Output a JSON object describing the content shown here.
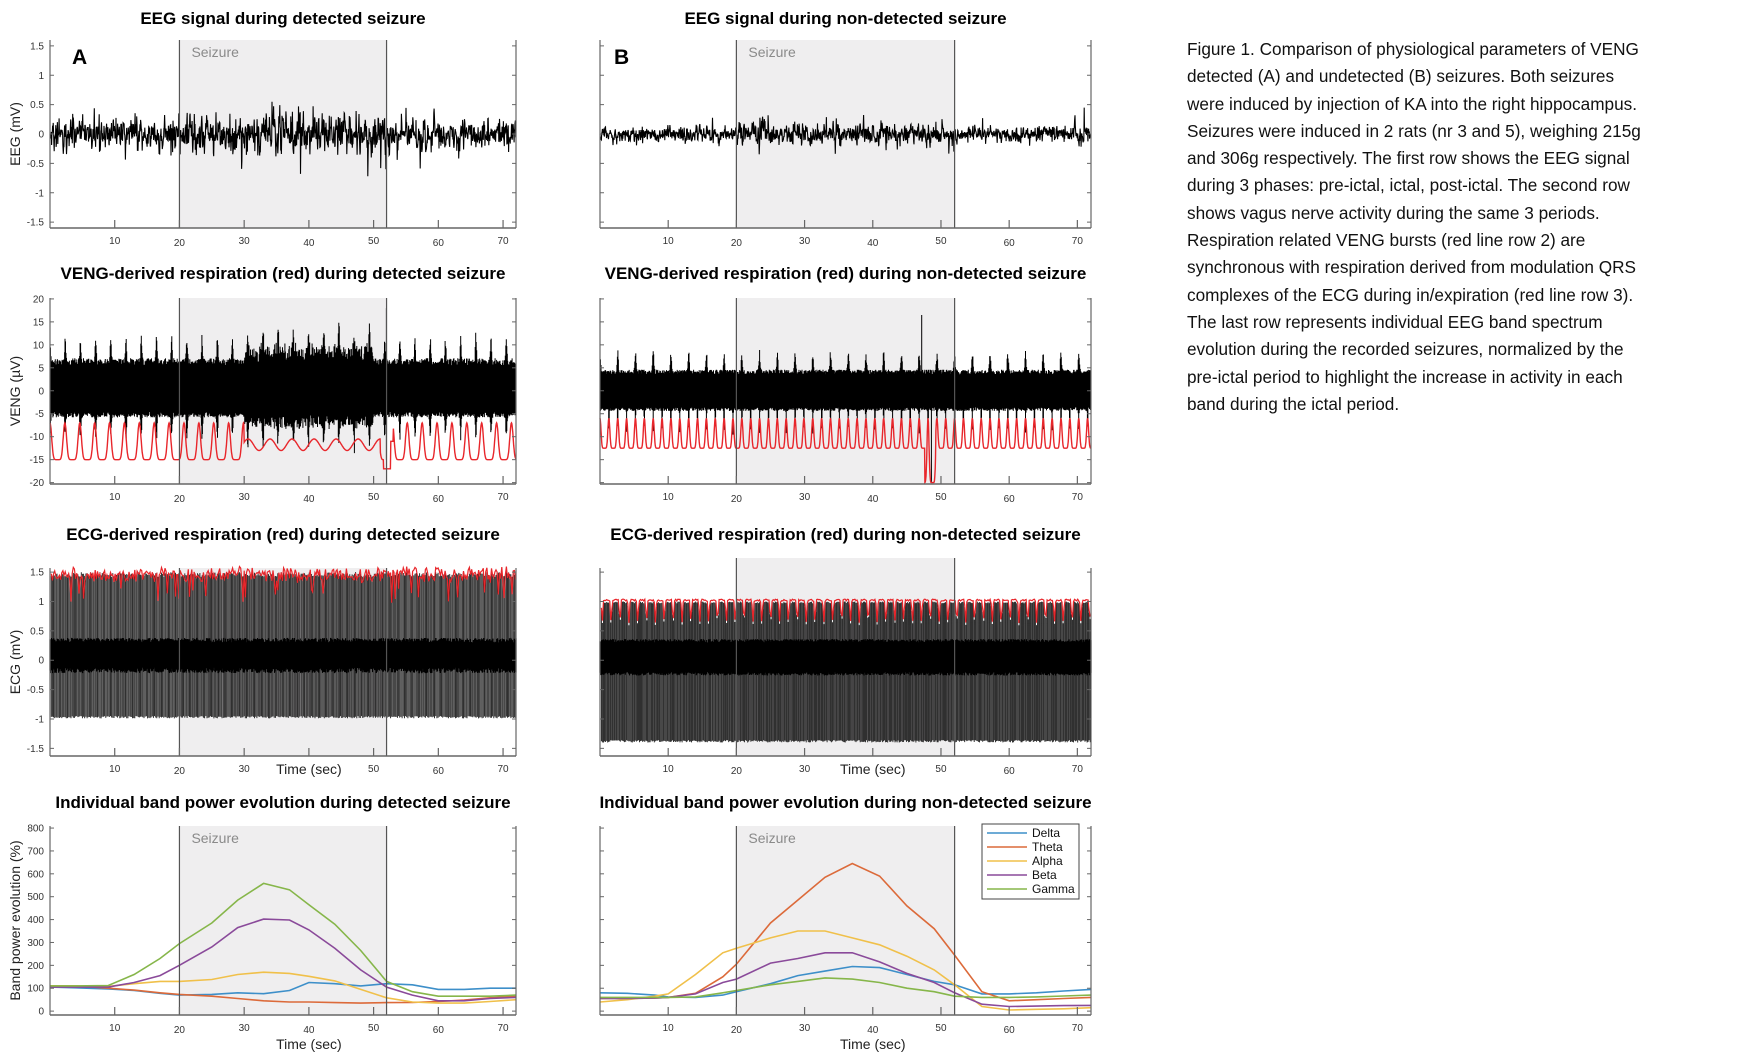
{
  "caption": {
    "lines": [
      "Figure 1. Comparison of physiological parameters of VENG",
      "detected (A) and undetected (B) seizures. Both seizures",
      "were induced by injection of KA into the right hippocampus.",
      "Seizures were induced in 2 rats (nr 3 and 5), weighing 215g",
      "and 306g respectively. The first row shows the EEG signal",
      "during 3 phases: pre-ictal, ictal, post-ictal. The second row",
      "shows vagus nerve activity during the same 3 periods.",
      "Respiration related VENG bursts (red line row 2) are",
      "synchronous with respiration derived from modulation QRS",
      "complexes of the ECG during in/expiration (red line row 3).",
      "The last row represents individual EEG band spectrum",
      "evolution during the recorded seizures, normalized by the",
      "pre-ictal period to highlight the increase in activity in each",
      "band during the ictal period."
    ]
  },
  "colors": {
    "seizure_fill": "#efeeef",
    "trace": "#000000",
    "respiration": "#e8262b",
    "Delta": "#3d8fc9",
    "Theta": "#dc6a3a",
    "Alpha": "#f0c04a",
    "Beta": "#8a4a9a",
    "Gamma": "#86b64a"
  },
  "chart_data": [
    {
      "type": "line",
      "kind": "eeg",
      "panel_letter": "A",
      "title": "EEG signal during detected seizure",
      "ylabel": "EEG (mV)",
      "xlabel": "",
      "xlim": [
        0,
        72
      ],
      "ylim": [
        -1.6,
        1.6
      ],
      "yticks": [
        1.5,
        1,
        0.5,
        0,
        -0.5,
        -1,
        -1.5
      ],
      "ytick_labels": [
        "1.5",
        "1",
        "0.5",
        "0",
        "-0.5",
        "-1",
        "-1.5"
      ],
      "xticks": [
        10,
        20,
        30,
        40,
        50,
        60,
        70
      ],
      "xtick_labels": [
        "10",
        "20",
        "30",
        "40",
        "50",
        "60",
        "70"
      ],
      "seizure_window": [
        20,
        52
      ],
      "annotation": "Seizure",
      "series": [
        {
          "name": "EEG",
          "approx_range": [
            -0.72,
            0.55
          ]
        }
      ]
    },
    {
      "type": "line",
      "kind": "eeg",
      "panel_letter": "B",
      "title": "EEG signal during non-detected seizure",
      "ylabel": "",
      "xlabel": "",
      "xlim": [
        0,
        72
      ],
      "ylim": [
        -1.6,
        1.6
      ],
      "yticks": [
        1.5,
        1,
        0.5,
        0,
        -0.5,
        -1,
        -1.5
      ],
      "ytick_labels": [],
      "xticks": [
        10,
        20,
        30,
        40,
        50,
        60,
        70
      ],
      "xtick_labels": [
        "10",
        "20",
        "30",
        "40",
        "50",
        "60",
        "70"
      ],
      "seizure_window": [
        20,
        52
      ],
      "annotation": "Seizure",
      "series": [
        {
          "name": "EEG",
          "approx_range": [
            -0.3,
            0.45
          ]
        }
      ]
    },
    {
      "type": "line",
      "kind": "veng",
      "title": "VENG-derived respiration (red) during detected seizure",
      "ylabel": "VENG (µV)",
      "xlabel": "",
      "xlim": [
        0,
        72
      ],
      "ylim": [
        -20.3,
        20.2
      ],
      "yticks": [
        20,
        15,
        10,
        5,
        0,
        -5,
        -10,
        -15,
        -20
      ],
      "ytick_labels": [
        "20",
        "15",
        "10",
        "5",
        "0",
        "-5",
        "-10",
        "-15",
        "-20"
      ],
      "xticks": [
        10,
        20,
        30,
        40,
        50,
        60,
        70
      ],
      "xtick_labels": [
        "10",
        "20",
        "30",
        "40",
        "50",
        "60",
        "70"
      ],
      "seizure_window": [
        20,
        52
      ],
      "annotation": "",
      "series": [
        {
          "name": "VENG",
          "approx_range": [
            -15,
            18
          ]
        },
        {
          "name": "Respiration",
          "color": "red",
          "approx_range": [
            -17,
            -6
          ]
        }
      ]
    },
    {
      "type": "line",
      "kind": "veng",
      "title": "VENG-derived respiration (red) during non-detected seizure",
      "ylabel": "",
      "xlabel": "",
      "xlim": [
        0,
        72
      ],
      "ylim": [
        -20.3,
        20.2
      ],
      "yticks": [
        20,
        15,
        10,
        5,
        0,
        -5,
        -10,
        -15,
        -20
      ],
      "ytick_labels": [],
      "xticks": [
        10,
        20,
        30,
        40,
        50,
        60,
        70
      ],
      "xtick_labels": [
        "10",
        "20",
        "30",
        "40",
        "50",
        "60",
        "70"
      ],
      "seizure_window": [
        20,
        52
      ],
      "annotation": "",
      "series": [
        {
          "name": "VENG",
          "approx_range": [
            -20,
            17
          ]
        },
        {
          "name": "Respiration",
          "color": "red",
          "approx_range": [
            -20,
            -6
          ]
        }
      ]
    },
    {
      "type": "line",
      "kind": "ecg",
      "title": "ECG-derived respiration (red) during detected seizure",
      "ylabel": "ECG (mV)",
      "xlabel": "Time (sec)",
      "xlim": [
        0,
        72
      ],
      "ylim": [
        -1.63,
        1.57
      ],
      "yticks": [
        1.5,
        1,
        0.5,
        0,
        -0.5,
        -1,
        -1.5
      ],
      "ytick_labels": [
        "1.5",
        "1",
        "0.5",
        "0",
        "-0.5",
        "-1",
        "-1.5"
      ],
      "xticks": [
        10,
        20,
        30,
        40,
        50,
        60,
        70
      ],
      "xtick_labels": [
        "10",
        "20",
        "30",
        "",
        "50",
        "60",
        "70"
      ],
      "seizure_window": [
        20,
        52
      ],
      "annotation": "",
      "series": [
        {
          "name": "ECG",
          "approx_range": [
            -1,
            1.5
          ]
        },
        {
          "name": "Respiration",
          "color": "red",
          "approx_range": [
            1,
            1.65
          ]
        }
      ]
    },
    {
      "type": "line",
      "kind": "ecg",
      "title": "ECG-derived respiration (red) during non-detected seizure",
      "ylabel": "",
      "xlabel": "Time (sec)",
      "xlim": [
        0,
        72
      ],
      "ylim": [
        -1.63,
        1.57
      ],
      "yticks": [
        1.5,
        1,
        0.5,
        0,
        -0.5,
        -1,
        -1.5
      ],
      "ytick_labels": [],
      "xticks": [
        10,
        20,
        30,
        40,
        50,
        60,
        70
      ],
      "xtick_labels": [
        "10",
        "20",
        "30",
        "",
        "50",
        "60",
        "70"
      ],
      "seizure_window": [
        20,
        52
      ],
      "annotation": "",
      "series": [
        {
          "name": "ECG",
          "approx_range": [
            -1.4,
            1
          ]
        },
        {
          "name": "Respiration",
          "color": "red",
          "approx_range": [
            0.6,
            1.05
          ]
        }
      ]
    },
    {
      "type": "line",
      "kind": "band",
      "title": "Individual band power evolution during detected seizure",
      "ylabel": "Band power evolution (%)",
      "xlabel": "Time (sec)",
      "xlim": [
        0,
        72
      ],
      "ylim": [
        -17,
        809
      ],
      "yticks": [
        800,
        700,
        600,
        500,
        400,
        300,
        200,
        100,
        0
      ],
      "ytick_labels": [
        "800",
        "700",
        "600",
        "500",
        "400",
        "300",
        "200",
        "100",
        "0"
      ],
      "xticks": [
        10,
        20,
        30,
        40,
        50,
        60,
        70
      ],
      "xtick_labels": [
        "10",
        "20",
        "30",
        "40",
        "50",
        "60",
        "70"
      ],
      "seizure_window": [
        20,
        52
      ],
      "annotation": "Seizure",
      "x": [
        0,
        4,
        9,
        13,
        17,
        20,
        25,
        29,
        33,
        37,
        40,
        44,
        48,
        52,
        56,
        60,
        64,
        68,
        72
      ],
      "series": [
        {
          "name": "Delta",
          "values": [
            105,
            102,
            97,
            90,
            78,
            70,
            73,
            80,
            76,
            90,
            125,
            120,
            110,
            120,
            115,
            95,
            95,
            100,
            100
          ]
        },
        {
          "name": "Theta",
          "values": [
            110,
            110,
            100,
            92,
            80,
            73,
            65,
            55,
            45,
            40,
            40,
            37,
            35,
            37,
            38,
            42,
            48,
            58,
            65
          ]
        },
        {
          "name": "Alpha",
          "values": [
            110,
            110,
            108,
            120,
            130,
            130,
            138,
            160,
            170,
            165,
            152,
            132,
            95,
            58,
            40,
            35,
            35,
            42,
            50
          ]
        },
        {
          "name": "Beta",
          "values": [
            105,
            105,
            105,
            125,
            155,
            200,
            280,
            365,
            402,
            398,
            355,
            275,
            180,
            105,
            70,
            45,
            45,
            55,
            60
          ]
        },
        {
          "name": "Gamma",
          "values": [
            110,
            110,
            112,
            160,
            230,
            295,
            385,
            485,
            558,
            530,
            465,
            380,
            265,
            130,
            85,
            65,
            65,
            65,
            70
          ]
        }
      ]
    },
    {
      "type": "line",
      "kind": "band",
      "title": "Individual band power evolution during non-detected seizure",
      "ylabel": "",
      "xlabel": "Time (sec)",
      "xlim": [
        0,
        72
      ],
      "ylim": [
        -17,
        809
      ],
      "yticks": [
        800,
        700,
        600,
        500,
        400,
        300,
        200,
        100,
        0
      ],
      "ytick_labels": [],
      "xticks": [
        10,
        20,
        30,
        40,
        50,
        60,
        70
      ],
      "xtick_labels": [
        "10",
        "20",
        "30",
        "40",
        "50",
        "60",
        "70"
      ],
      "seizure_window": [
        20,
        52
      ],
      "annotation": "Seizure",
      "legend": {
        "position": "top-right"
      },
      "x": [
        0,
        4,
        8,
        10,
        14,
        18,
        20,
        25,
        29,
        33,
        37,
        41,
        45,
        49,
        52,
        56,
        60,
        64,
        68,
        72
      ],
      "series": [
        {
          "name": "Delta",
          "values": [
            80,
            78,
            70,
            62,
            60,
            70,
            85,
            120,
            155,
            175,
            195,
            190,
            160,
            130,
            115,
            75,
            75,
            80,
            88,
            95
          ]
        },
        {
          "name": "Theta",
          "values": [
            55,
            55,
            57,
            60,
            78,
            150,
            205,
            385,
            485,
            585,
            645,
            590,
            460,
            360,
            245,
            85,
            45,
            50,
            55,
            60
          ]
        },
        {
          "name": "Alpha",
          "values": [
            40,
            50,
            65,
            75,
            160,
            255,
            275,
            320,
            350,
            350,
            320,
            290,
            240,
            180,
            115,
            20,
            5,
            8,
            10,
            15
          ]
        },
        {
          "name": "Beta",
          "values": [
            55,
            55,
            57,
            60,
            75,
            125,
            140,
            210,
            230,
            255,
            255,
            215,
            165,
            125,
            80,
            30,
            20,
            22,
            24,
            25
          ]
        },
        {
          "name": "Gamma",
          "values": [
            60,
            60,
            60,
            60,
            62,
            80,
            90,
            115,
            130,
            145,
            140,
            125,
            100,
            85,
            65,
            60,
            60,
            62,
            66,
            70
          ]
        }
      ]
    }
  ]
}
